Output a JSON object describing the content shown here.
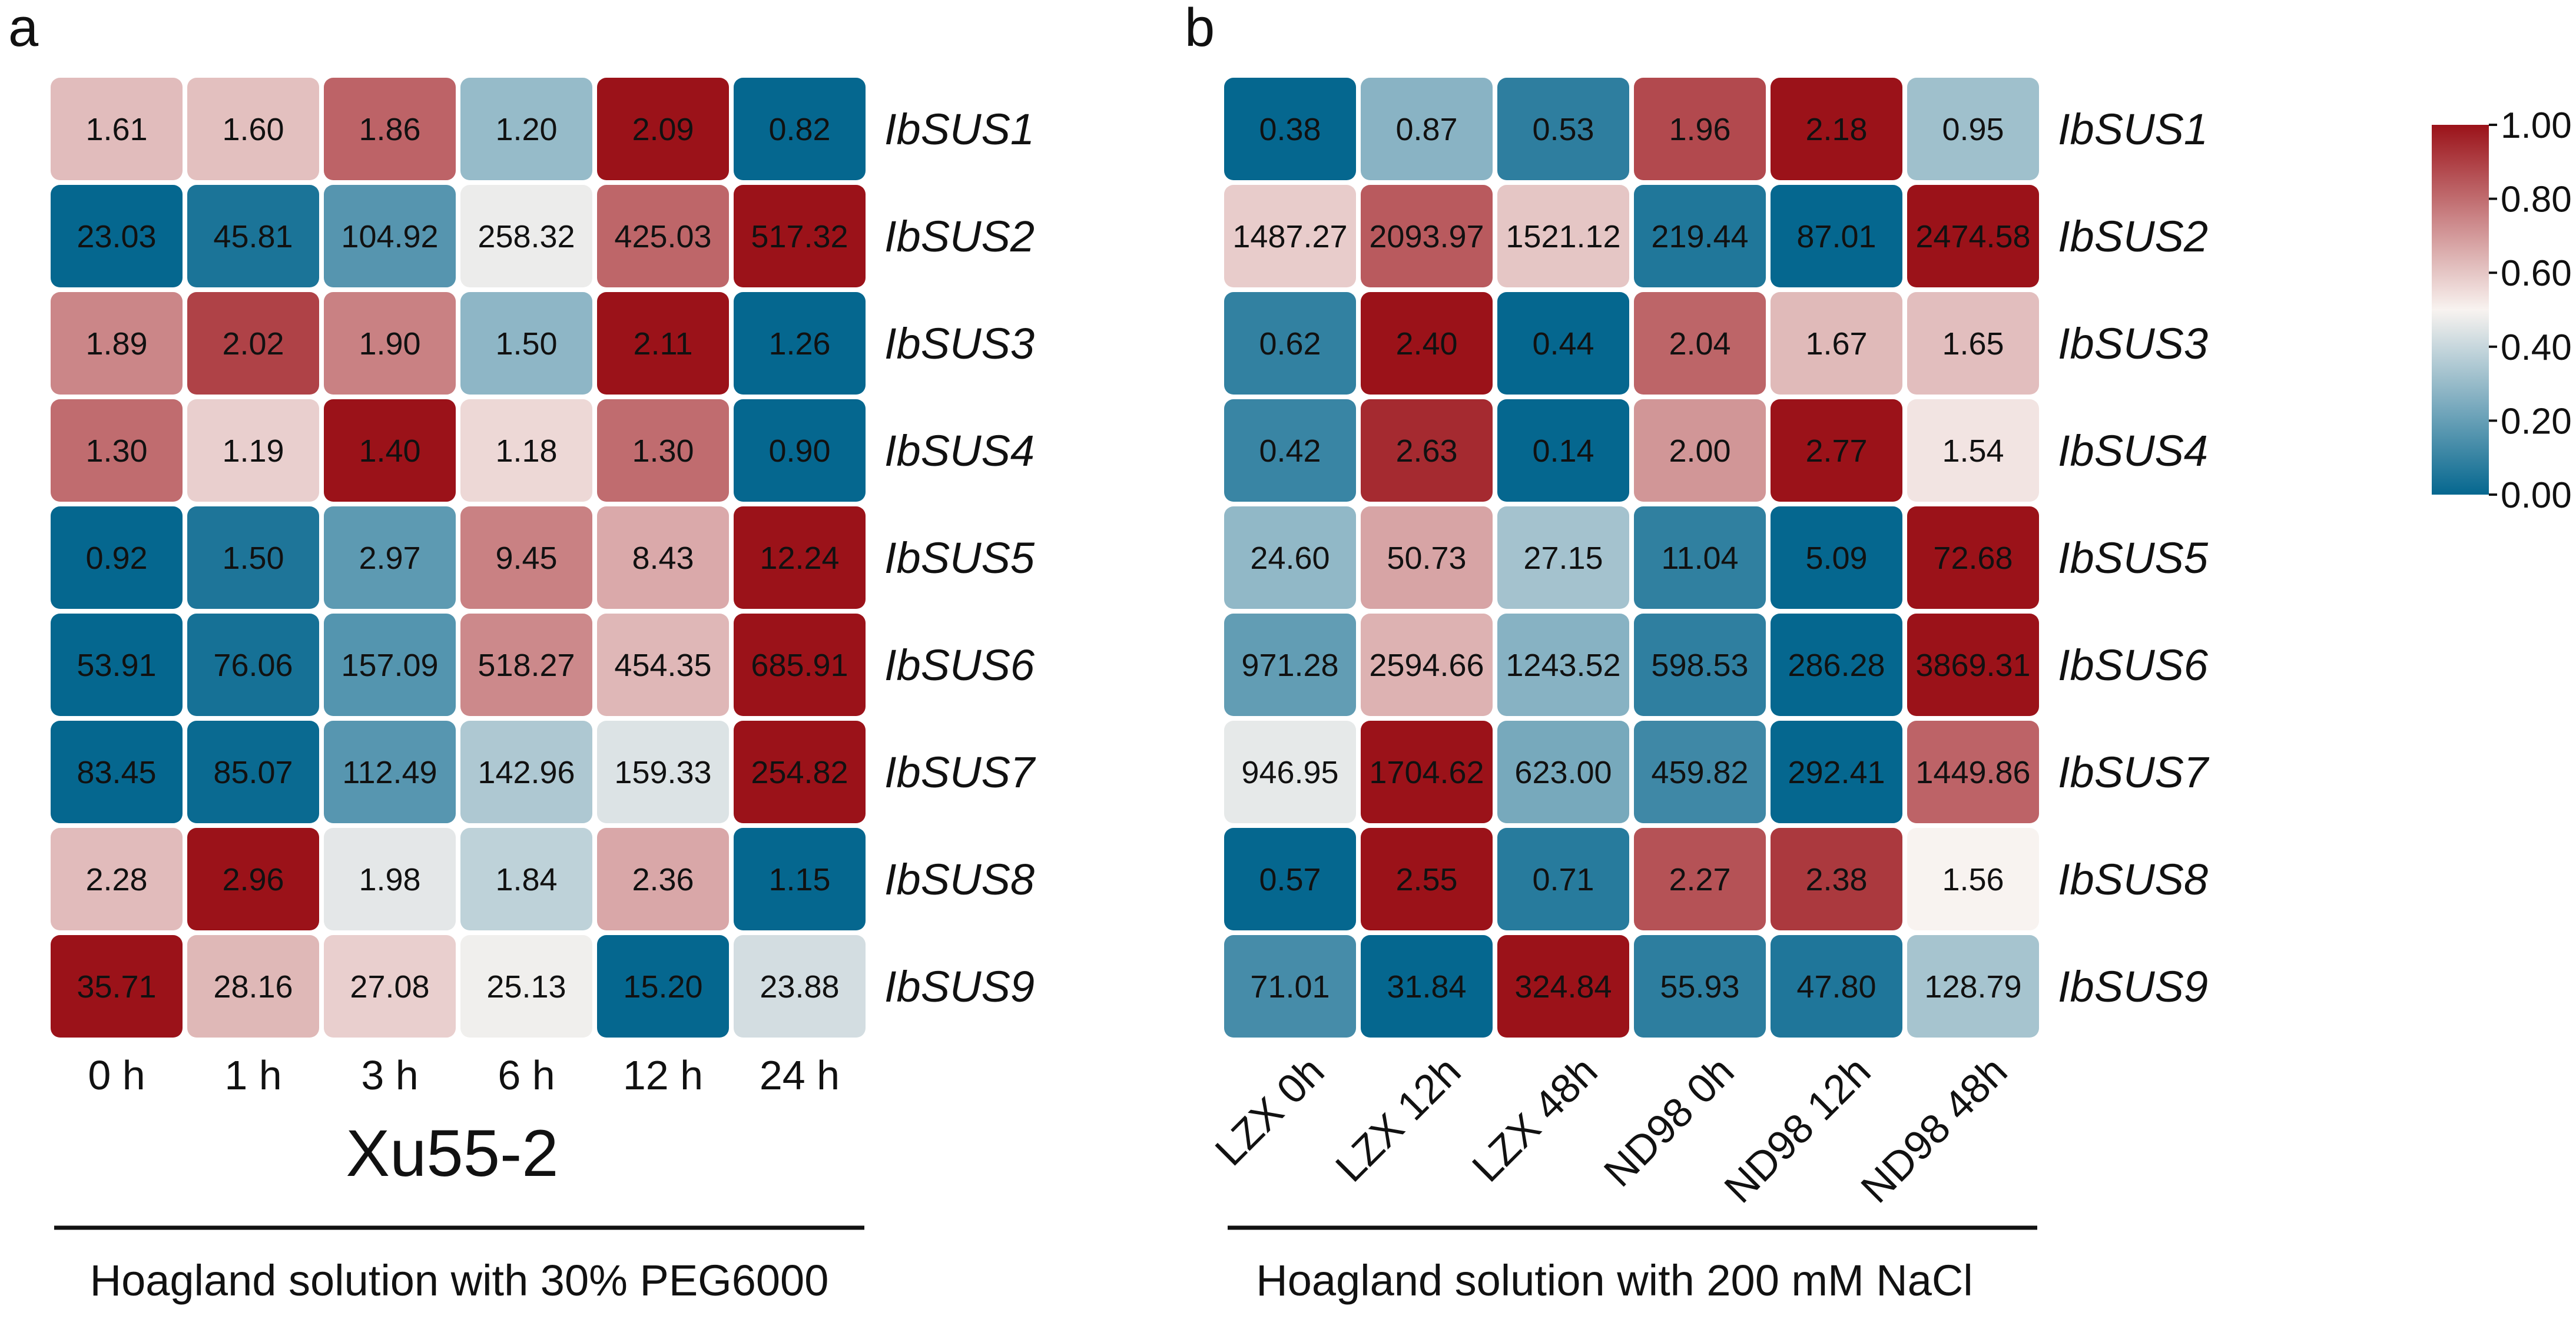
{
  "figure": {
    "panel_a_letter": "a",
    "panel_b_letter": "b",
    "subtitle_a": "Xu55-2",
    "caption_a": "Hoagland solution with 30% PEG6000",
    "caption_b": "Hoagland solution with 200 mM NaCl"
  },
  "colors": {
    "high": "#9b1219",
    "mid": "#f8f3f0",
    "low": "#05678f",
    "dark_text": "#111111"
  },
  "chart_data": [
    {
      "type": "heatmap",
      "panel": "a",
      "title": "Xu55-2",
      "rows": [
        "IbSUS1",
        "IbSUS2",
        "IbSUS3",
        "IbSUS4",
        "IbSUS5",
        "IbSUS6",
        "IbSUS7",
        "IbSUS8",
        "IbSUS9"
      ],
      "columns": [
        "0 h",
        "1 h",
        "3 h",
        "6 h",
        "12 h",
        "24 h"
      ],
      "labels": [
        [
          "1.61",
          "1.60",
          "1.86",
          "1.20",
          "2.09",
          "0.82"
        ],
        [
          "23.03",
          "45.81",
          "104.92",
          "258.32",
          "425.03",
          "517.32"
        ],
        [
          "1.89",
          "2.02",
          "1.90",
          "1.50",
          "2.11",
          "1.26"
        ],
        [
          "1.30",
          "1.19",
          "1.40",
          "1.18",
          "1.30",
          "0.90"
        ],
        [
          "0.92",
          "1.50",
          "2.97",
          "9.45",
          "8.43",
          "12.24"
        ],
        [
          "53.91",
          "76.06",
          "157.09",
          "518.27",
          "454.35",
          "685.91"
        ],
        [
          "83.45",
          "85.07",
          "112.49",
          "142.96",
          "159.33",
          "254.82"
        ],
        [
          "2.28",
          "2.96",
          "1.98",
          "1.84",
          "2.36",
          "1.15"
        ],
        [
          "35.71",
          "28.16",
          "27.08",
          "25.13",
          "15.20",
          "23.88"
        ]
      ],
      "normalization": "row min-max (0-1)",
      "caption": "Hoagland solution with 30% PEG6000"
    },
    {
      "type": "heatmap",
      "panel": "b",
      "rows": [
        "IbSUS1",
        "IbSUS2",
        "IbSUS3",
        "IbSUS4",
        "IbSUS5",
        "IbSUS6",
        "IbSUS7",
        "IbSUS8",
        "IbSUS9"
      ],
      "columns": [
        "LZX 0h",
        "LZX 12h",
        "LZX 48h",
        "ND98 0h",
        "ND98 12h",
        "ND98 48h"
      ],
      "labels": [
        [
          "0.38",
          "0.87",
          "0.53",
          "1.96",
          "2.18",
          "0.95"
        ],
        [
          "1487.27",
          "2093.97",
          "1521.12",
          "219.44",
          "87.01",
          "2474.58"
        ],
        [
          "0.62",
          "2.40",
          "0.44",
          "2.04",
          "1.67",
          "1.65"
        ],
        [
          "0.42",
          "2.63",
          "0.14",
          "2.00",
          "2.77",
          "1.54"
        ],
        [
          "24.60",
          "50.73",
          "27.15",
          "11.04",
          "5.09",
          "72.68"
        ],
        [
          "971.28",
          "2594.66",
          "1243.52",
          "598.53",
          "286.28",
          "3869.31"
        ],
        [
          "946.95",
          "1704.62",
          "623.00",
          "459.82",
          "292.41",
          "1449.86"
        ],
        [
          "0.57",
          "2.55",
          "0.71",
          "2.27",
          "2.38",
          "1.56"
        ],
        [
          "71.01",
          "31.84",
          "324.84",
          "55.93",
          "47.80",
          "128.79"
        ]
      ],
      "normalization": "row min-max (0-1)",
      "caption": "Hoagland solution with 200 mM NaCl"
    }
  ],
  "colorbar": {
    "min": 0.0,
    "max": 1.0,
    "ticks": [
      "0.00",
      "0.20",
      "0.40",
      "0.60",
      "0.80",
      "1.00"
    ]
  }
}
